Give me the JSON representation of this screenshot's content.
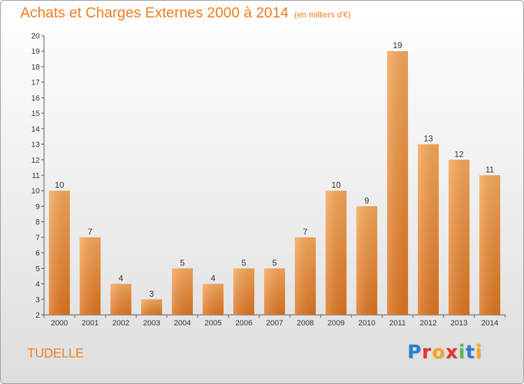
{
  "header": {
    "title": "Achats et Charges Externes 2000 à 2014",
    "unit": "(en milliers d'€)"
  },
  "commune": "TUDELLE",
  "logo": {
    "text": "Proxiti",
    "letters": [
      "P",
      "r",
      "o",
      "x",
      "i",
      "t",
      "i"
    ],
    "colors": [
      "#2a7fd4",
      "#e8322a",
      "#f5a623",
      "#e8322a",
      "#5cb85c",
      "#2a7fd4",
      "#f5a623"
    ]
  },
  "colors": {
    "accent": "#f07d1e",
    "bar_top": "#f6a85a",
    "bar_bottom": "#e07a22"
  },
  "chart_data": {
    "type": "bar",
    "title": "Achats et Charges Externes 2000 à 2014",
    "subtitle": "(en milliers d'€)",
    "categories": [
      "2000",
      "2001",
      "2002",
      "2003",
      "2004",
      "2005",
      "2006",
      "2007",
      "2008",
      "2009",
      "2010",
      "2011",
      "2012",
      "2013",
      "2014"
    ],
    "values": [
      10,
      7,
      4,
      3,
      5,
      4,
      5,
      5,
      7,
      10,
      9,
      19,
      13,
      12,
      11
    ],
    "ylim": [
      2,
      20
    ],
    "yticks": [
      2,
      3,
      4,
      5,
      6,
      7,
      8,
      9,
      10,
      11,
      12,
      13,
      14,
      15,
      16,
      17,
      18,
      19,
      20
    ],
    "grid": false,
    "xlabel": "",
    "ylabel": ""
  }
}
